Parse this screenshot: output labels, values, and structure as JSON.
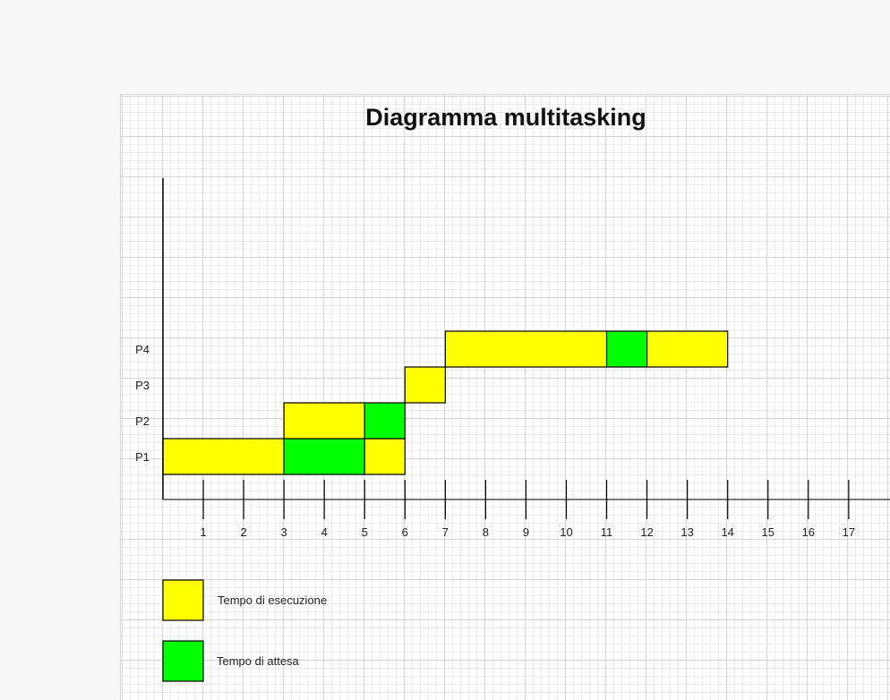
{
  "title": "Diagramma multitasking",
  "colors": {
    "execution": "#ffff00",
    "waiting": "#00ff00",
    "border": "#000000"
  },
  "chart_data": {
    "type": "gantt",
    "title": "Diagramma multitasking",
    "rows": [
      "P1",
      "P2",
      "P3",
      "P4"
    ],
    "x_ticks": [
      1,
      2,
      3,
      4,
      5,
      6,
      7,
      8,
      9,
      10,
      11,
      12,
      13,
      14,
      15,
      16,
      17
    ],
    "xlim": [
      0,
      18
    ],
    "segments": [
      {
        "row": "P1",
        "start": 0,
        "end": 3,
        "kind": "execution"
      },
      {
        "row": "P1",
        "start": 3,
        "end": 5,
        "kind": "waiting"
      },
      {
        "row": "P1",
        "start": 5,
        "end": 6,
        "kind": "execution"
      },
      {
        "row": "P2",
        "start": 3,
        "end": 5,
        "kind": "execution"
      },
      {
        "row": "P2",
        "start": 5,
        "end": 6,
        "kind": "waiting"
      },
      {
        "row": "P3",
        "start": 6,
        "end": 7,
        "kind": "execution"
      },
      {
        "row": "P4",
        "start": 7,
        "end": 11,
        "kind": "execution"
      },
      {
        "row": "P4",
        "start": 11,
        "end": 12,
        "kind": "waiting"
      },
      {
        "row": "P4",
        "start": 12,
        "end": 14,
        "kind": "execution"
      }
    ]
  },
  "legend": [
    {
      "kind": "execution",
      "label": "Tempo di esecuzione"
    },
    {
      "kind": "waiting",
      "label": "Tempo di attesa"
    }
  ]
}
